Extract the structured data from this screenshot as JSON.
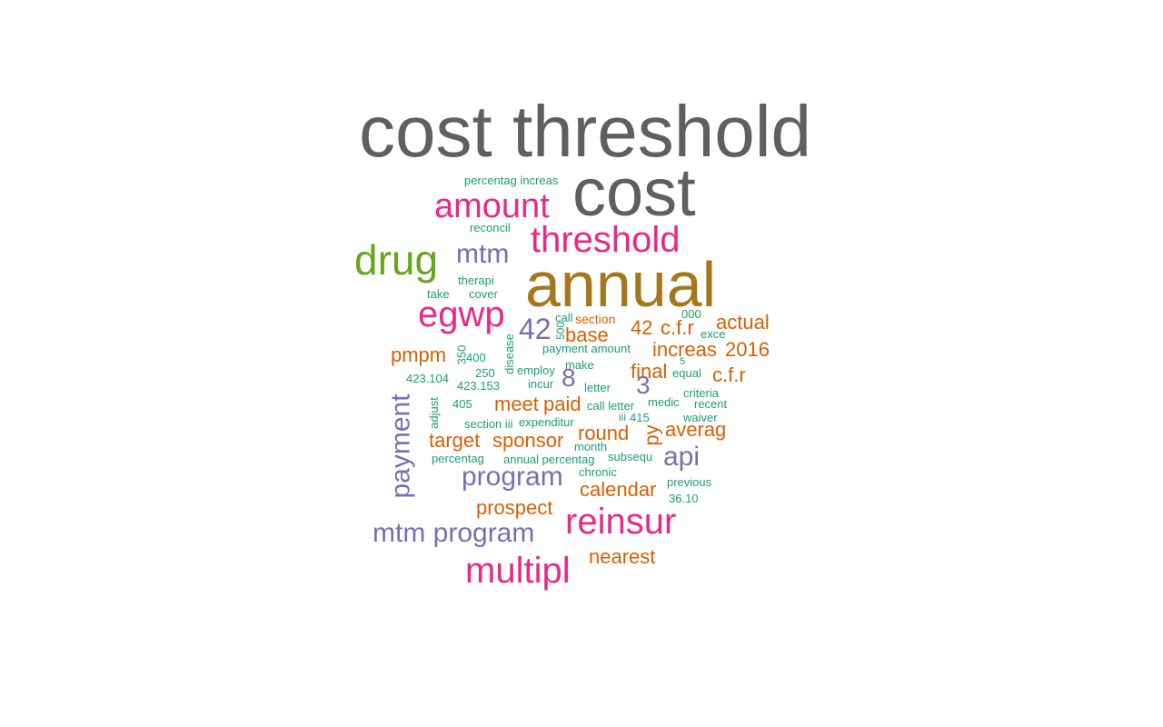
{
  "colors": {
    "gray": "#5f5f5f",
    "brown": "#a6761d",
    "pink": "#e7298a",
    "green": "#66a61e",
    "purple": "#7570b3",
    "orange": "#d95f02",
    "teal": "#1b9e77"
  },
  "words": [
    "cost threshold",
    "cost",
    "annual",
    "threshold",
    "amount",
    "drug",
    "mtm",
    "egwp",
    "42",
    "payment",
    "reinsur",
    "multipl",
    "program",
    "mtm program",
    "api",
    "8",
    "3",
    "base",
    "42",
    "c.f.r",
    "actual",
    "increas",
    "2016",
    "pmpm",
    "final",
    "c.f.r",
    "meet",
    "paid",
    "round",
    "averag",
    "target",
    "sponsor",
    "calendar",
    "prospect",
    "nearest",
    "py",
    "percentag increas",
    "reconcil",
    "therapi",
    "take",
    "cover",
    "call",
    "section",
    "000",
    "exce",
    "payment amount",
    "350",
    "400",
    "500",
    "disease",
    "employ",
    "make",
    "5",
    "equal",
    "423.104",
    "250",
    "423.153",
    "incur",
    "letter",
    "criteria",
    "405",
    "adjust",
    "medic",
    "recent",
    "call letter",
    "section iii",
    "expenditur",
    "iii",
    "415",
    "waiver",
    "month",
    "percentag",
    "annual percentag",
    "subsequ",
    "chronic",
    "previous",
    "36.10"
  ]
}
